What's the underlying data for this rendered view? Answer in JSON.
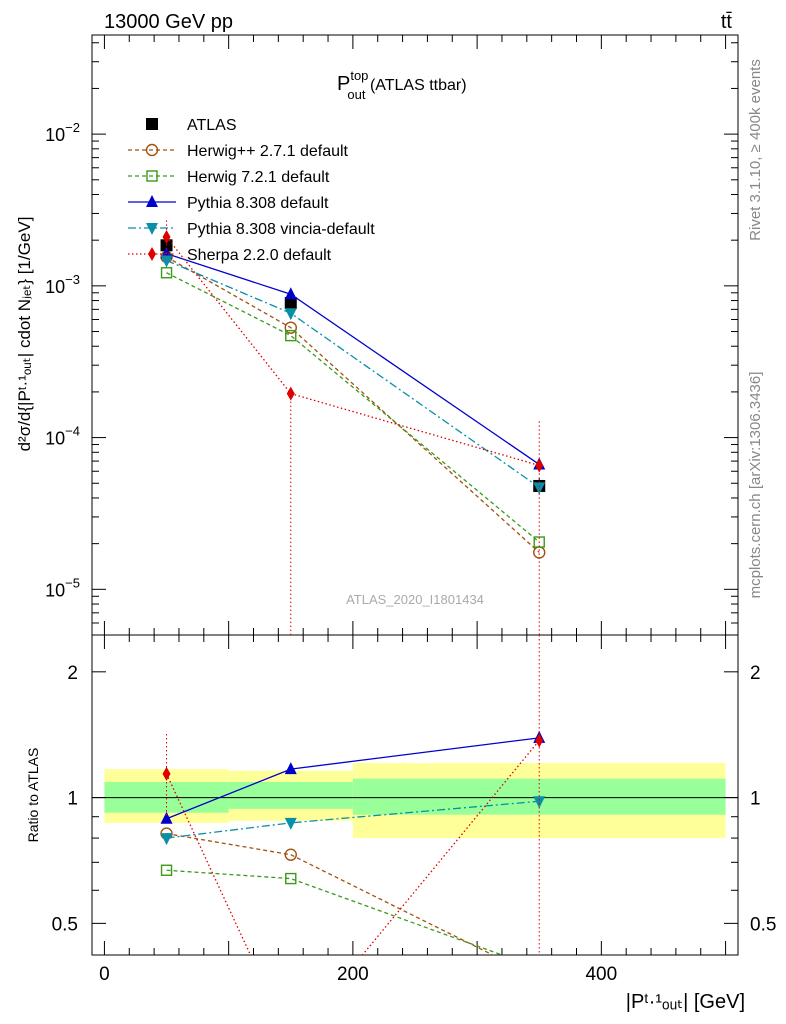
{
  "header": {
    "left": "13000 GeV pp",
    "right": "tt̄"
  },
  "side_labels": {
    "rivet": "Rivet 3.1.10, ≥ 400k events",
    "mcplots": "mcplots.cern.ch [arXiv:1306.3436]"
  },
  "top_panel": {
    "title_main": "P",
    "title_sup": "top",
    "title_sub": "out",
    "title_rest": " (ATLAS ttbar)",
    "watermark": "ATLAS_2020_I1801434",
    "ylabel": "d²σ/d{|Pᵗ·¹ₒᵤₜ| cdot Nⱼₑₜ} [1/GeV]",
    "yticks": [
      {
        "base": "10",
        "exp": "−2",
        "value": 0.01
      },
      {
        "base": "10",
        "exp": "−3",
        "value": 0.001
      },
      {
        "base": "10",
        "exp": "−4",
        "value": 0.0001
      },
      {
        "base": "10",
        "exp": "−5",
        "value": 1e-05
      }
    ]
  },
  "ratio_panel": {
    "ylabel": "Ratio to ATLAS",
    "yticks": [
      "0.5",
      "1",
      "2"
    ],
    "xlabel": "|Pᵗ·¹ₒᵤₜ| [GeV]",
    "xticks": [
      "0",
      "200",
      "400"
    ]
  },
  "legend": [
    {
      "label": "ATLAS",
      "color": "#000000",
      "marker": "square-filled",
      "dash": "none"
    },
    {
      "label": "Herwig++ 2.7.1 default",
      "color": "#a0520f",
      "marker": "circle-open",
      "dash": "4,3"
    },
    {
      "label": "Herwig 7.2.1 default",
      "color": "#3a9a1a",
      "marker": "square-open",
      "dash": "4,3"
    },
    {
      "label": "Pythia 8.308 default",
      "color": "#0000cc",
      "marker": "triangle-up",
      "dash": ""
    },
    {
      "label": "Pythia 8.308 vincia-default",
      "color": "#0a8fa8",
      "marker": "triangle-down",
      "dash": "8,3,2,3"
    },
    {
      "label": "Sherpa 2.2.0 default",
      "color": "#dd0000",
      "marker": "diamond",
      "dash": "1.5,2.5"
    }
  ],
  "chart_data": [
    {
      "type": "line",
      "panel": "main",
      "title": "P_out^top (ATLAS ttbar)",
      "xlabel": "|P_out^t,1| [GeV]",
      "ylabel": "d^2{|P_out^t,1| cdot N_jets} [1/GeV]",
      "yscale": "log",
      "xlim": [
        -10,
        510
      ],
      "ylim": [
        5e-06,
        0.045
      ],
      "x": [
        50,
        150,
        350
      ],
      "bins": [
        [
          0,
          100
        ],
        [
          100,
          200
        ],
        [
          200,
          500
        ]
      ],
      "series": [
        {
          "name": "ATLAS",
          "values": [
            0.00185,
            0.00077,
            4.8e-05
          ]
        },
        {
          "name": "Herwig++ 2.7.1 default",
          "values": [
            0.00155,
            0.00053,
            1.75e-05
          ]
        },
        {
          "name": "Herwig 7.2.1 default",
          "values": [
            0.00122,
            0.00047,
            2.05e-05
          ]
        },
        {
          "name": "Pythia 8.308 default",
          "values": [
            0.00163,
            0.00088,
            6.65e-05
          ]
        },
        {
          "name": "Pythia 8.308 vincia-default",
          "values": [
            0.00147,
            0.00066,
            4.7e-05
          ]
        },
        {
          "name": "Sherpa 2.2.0 default",
          "values": [
            0.0021,
            0.000195,
            6.55e-05
          ]
        }
      ]
    },
    {
      "type": "line",
      "panel": "ratio",
      "ylabel": "Ratio to ATLAS",
      "xlabel": "|P_out^t,1| [GeV]",
      "yscale": "log",
      "xlim": [
        -10,
        510
      ],
      "ylim": [
        0.42,
        2.45
      ],
      "x": [
        50,
        150,
        350
      ],
      "bands": {
        "inner": [
          [
            0.92,
            1.09
          ],
          [
            0.94,
            1.09
          ],
          [
            0.91,
            1.11
          ]
        ],
        "outer": [
          [
            0.87,
            1.17
          ],
          [
            0.88,
            1.16
          ],
          [
            0.8,
            1.21
          ]
        ]
      },
      "series": [
        {
          "name": "Herwig++ 2.7.1 default",
          "values": [
            0.82,
            0.73,
            0.37
          ]
        },
        {
          "name": "Herwig 7.2.1 default",
          "values": [
            0.67,
            0.64,
            0.39
          ]
        },
        {
          "name": "Pythia 8.308 default",
          "values": [
            0.89,
            1.17,
            1.39
          ]
        },
        {
          "name": "Pythia 8.308 vincia-default",
          "values": [
            0.8,
            0.87,
            0.98
          ]
        },
        {
          "name": "Sherpa 2.2.0 default",
          "values": [
            1.14,
            0.26,
            1.37
          ]
        }
      ]
    }
  ]
}
